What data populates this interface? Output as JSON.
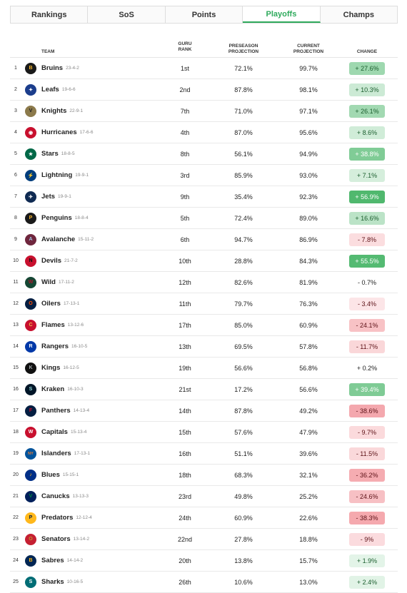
{
  "tabs": [
    "Rankings",
    "SoS",
    "Points",
    "Playoffs",
    "Champs"
  ],
  "active_tab": 3,
  "headers": {
    "team": "TEAM",
    "guru1": "GURU",
    "guru2": "RANK",
    "pre1": "PRESEASON",
    "pre2": "PROJECTION",
    "cur1": "CURRENT",
    "cur2": "PROJECTION",
    "change": "CHANGE"
  },
  "rows": [
    {
      "rank": "1",
      "team": "Bruins",
      "record": "23-4-2",
      "guru": "1st",
      "pre": "72.1%",
      "cur": "99.7%",
      "change": "+ 27.6%",
      "delta": 27.6,
      "logo_color": "#1a1a1a",
      "logo_fg": "#f5b428",
      "glyph": "B"
    },
    {
      "rank": "2",
      "team": "Leafs",
      "record": "19-6-6",
      "guru": "2nd",
      "pre": "87.8%",
      "cur": "98.1%",
      "change": "+ 10.3%",
      "delta": 10.3,
      "logo_color": "#1b3d8c",
      "logo_fg": "#ffffff",
      "glyph": "✦"
    },
    {
      "rank": "3",
      "team": "Knights",
      "record": "22-9-1",
      "guru": "7th",
      "pre": "71.0%",
      "cur": "97.1%",
      "change": "+ 26.1%",
      "delta": 26.1,
      "logo_color": "#8c7a4b",
      "logo_fg": "#222222",
      "glyph": "V"
    },
    {
      "rank": "4",
      "team": "Hurricanes",
      "record": "17-6-6",
      "guru": "4th",
      "pre": "87.0%",
      "cur": "95.6%",
      "change": "+ 8.6%",
      "delta": 8.6,
      "logo_color": "#c8102e",
      "logo_fg": "#ffffff",
      "glyph": "◉"
    },
    {
      "rank": "5",
      "team": "Stars",
      "record": "18-8-5",
      "guru": "8th",
      "pre": "56.1%",
      "cur": "94.9%",
      "change": "+ 38.8%",
      "delta": 38.8,
      "logo_color": "#006847",
      "logo_fg": "#ffffff",
      "glyph": "★"
    },
    {
      "rank": "6",
      "team": "Lightning",
      "record": "19-9-1",
      "guru": "3rd",
      "pre": "85.9%",
      "cur": "93.0%",
      "change": "+ 7.1%",
      "delta": 7.1,
      "logo_color": "#003d7c",
      "logo_fg": "#ffffff",
      "glyph": "⚡"
    },
    {
      "rank": "7",
      "team": "Jets",
      "record": "19-9-1",
      "guru": "9th",
      "pre": "35.4%",
      "cur": "92.3%",
      "change": "+ 56.9%",
      "delta": 56.9,
      "logo_color": "#0f2a52",
      "logo_fg": "#ffffff",
      "glyph": "✈"
    },
    {
      "rank": "8",
      "team": "Penguins",
      "record": "18-8-4",
      "guru": "5th",
      "pre": "72.4%",
      "cur": "89.0%",
      "change": "+ 16.6%",
      "delta": 16.6,
      "logo_color": "#1a1a1a",
      "logo_fg": "#f5b428",
      "glyph": "P"
    },
    {
      "rank": "9",
      "team": "Avalanche",
      "record": "15-11-2",
      "guru": "6th",
      "pre": "94.7%",
      "cur": "86.9%",
      "change": "- 7.8%",
      "delta": -7.8,
      "logo_color": "#6f263d",
      "logo_fg": "#a2c4e0",
      "glyph": "A"
    },
    {
      "rank": "10",
      "team": "Devils",
      "record": "21-7-2",
      "guru": "10th",
      "pre": "28.8%",
      "cur": "84.3%",
      "change": "+ 55.5%",
      "delta": 55.5,
      "logo_color": "#c8102e",
      "logo_fg": "#111111",
      "glyph": "N"
    },
    {
      "rank": "11",
      "team": "Wild",
      "record": "17-11-2",
      "guru": "12th",
      "pre": "82.6%",
      "cur": "81.9%",
      "change": "- 0.7%",
      "delta": -0.7,
      "logo_color": "#154734",
      "logo_fg": "#a6192e",
      "glyph": "W"
    },
    {
      "rank": "12",
      "team": "Oilers",
      "record": "17-13-1",
      "guru": "11th",
      "pre": "79.7%",
      "cur": "76.3%",
      "change": "- 3.4%",
      "delta": -3.4,
      "logo_color": "#041e42",
      "logo_fg": "#ff4c00",
      "glyph": "O"
    },
    {
      "rank": "13",
      "team": "Flames",
      "record": "13-12-6",
      "guru": "17th",
      "pre": "85.0%",
      "cur": "60.9%",
      "change": "- 24.1%",
      "delta": -24.1,
      "logo_color": "#c8102e",
      "logo_fg": "#f1be48",
      "glyph": "C"
    },
    {
      "rank": "14",
      "team": "Rangers",
      "record": "16-10-5",
      "guru": "13th",
      "pre": "69.5%",
      "cur": "57.8%",
      "change": "- 11.7%",
      "delta": -11.7,
      "logo_color": "#0038a8",
      "logo_fg": "#ffffff",
      "glyph": "R"
    },
    {
      "rank": "15",
      "team": "Kings",
      "record": "16-12-5",
      "guru": "19th",
      "pre": "56.6%",
      "cur": "56.8%",
      "change": "+ 0.2%",
      "delta": 0.2,
      "logo_color": "#111111",
      "logo_fg": "#a2aaad",
      "glyph": "K"
    },
    {
      "rank": "16",
      "team": "Kraken",
      "record": "16-10-3",
      "guru": "21st",
      "pre": "17.2%",
      "cur": "56.6%",
      "change": "+ 39.4%",
      "delta": 39.4,
      "logo_color": "#001628",
      "logo_fg": "#99d9d9",
      "glyph": "S"
    },
    {
      "rank": "17",
      "team": "Panthers",
      "record": "14-13-4",
      "guru": "14th",
      "pre": "87.8%",
      "cur": "49.2%",
      "change": "- 38.6%",
      "delta": -38.6,
      "logo_color": "#041e42",
      "logo_fg": "#c8102e",
      "glyph": "F"
    },
    {
      "rank": "18",
      "team": "Capitals",
      "record": "15-13-4",
      "guru": "15th",
      "pre": "57.6%",
      "cur": "47.9%",
      "change": "- 9.7%",
      "delta": -9.7,
      "logo_color": "#c8102e",
      "logo_fg": "#ffffff",
      "glyph": "W"
    },
    {
      "rank": "19",
      "team": "Islanders",
      "record": "17-13-1",
      "guru": "16th",
      "pre": "51.1%",
      "cur": "39.6%",
      "change": "- 11.5%",
      "delta": -11.5,
      "logo_color": "#00539b",
      "logo_fg": "#f47d30",
      "glyph": "NY"
    },
    {
      "rank": "20",
      "team": "Blues",
      "record": "15-15-1",
      "guru": "18th",
      "pre": "68.3%",
      "cur": "32.1%",
      "change": "- 36.2%",
      "delta": -36.2,
      "logo_color": "#002f87",
      "logo_fg": "#fcb514",
      "glyph": "♪"
    },
    {
      "rank": "21",
      "team": "Canucks",
      "record": "13-13-3",
      "guru": "23rd",
      "pre": "49.8%",
      "cur": "25.2%",
      "change": "- 24.6%",
      "delta": -24.6,
      "logo_color": "#00205b",
      "logo_fg": "#00843d",
      "glyph": "V"
    },
    {
      "rank": "22",
      "team": "Predators",
      "record": "12-12-4",
      "guru": "24th",
      "pre": "60.9%",
      "cur": "22.6%",
      "change": "- 38.3%",
      "delta": -38.3,
      "logo_color": "#ffb81c",
      "logo_fg": "#041e42",
      "glyph": "P"
    },
    {
      "rank": "23",
      "team": "Senators",
      "record": "13-14-2",
      "guru": "22nd",
      "pre": "27.8%",
      "cur": "18.8%",
      "change": "- 9%",
      "delta": -9,
      "logo_color": "#c52032",
      "logo_fg": "#c2912c",
      "glyph": "O"
    },
    {
      "rank": "24",
      "team": "Sabres",
      "record": "14-14-2",
      "guru": "20th",
      "pre": "13.8%",
      "cur": "15.7%",
      "change": "+ 1.9%",
      "delta": 1.9,
      "logo_color": "#002654",
      "logo_fg": "#fcb514",
      "glyph": "B"
    },
    {
      "rank": "25",
      "team": "Sharks",
      "record": "10-16-5",
      "guru": "26th",
      "pre": "10.6%",
      "cur": "13.0%",
      "change": "+ 2.4%",
      "delta": 2.4,
      "logo_color": "#006d75",
      "logo_fg": "#ffffff",
      "glyph": "S"
    }
  ]
}
